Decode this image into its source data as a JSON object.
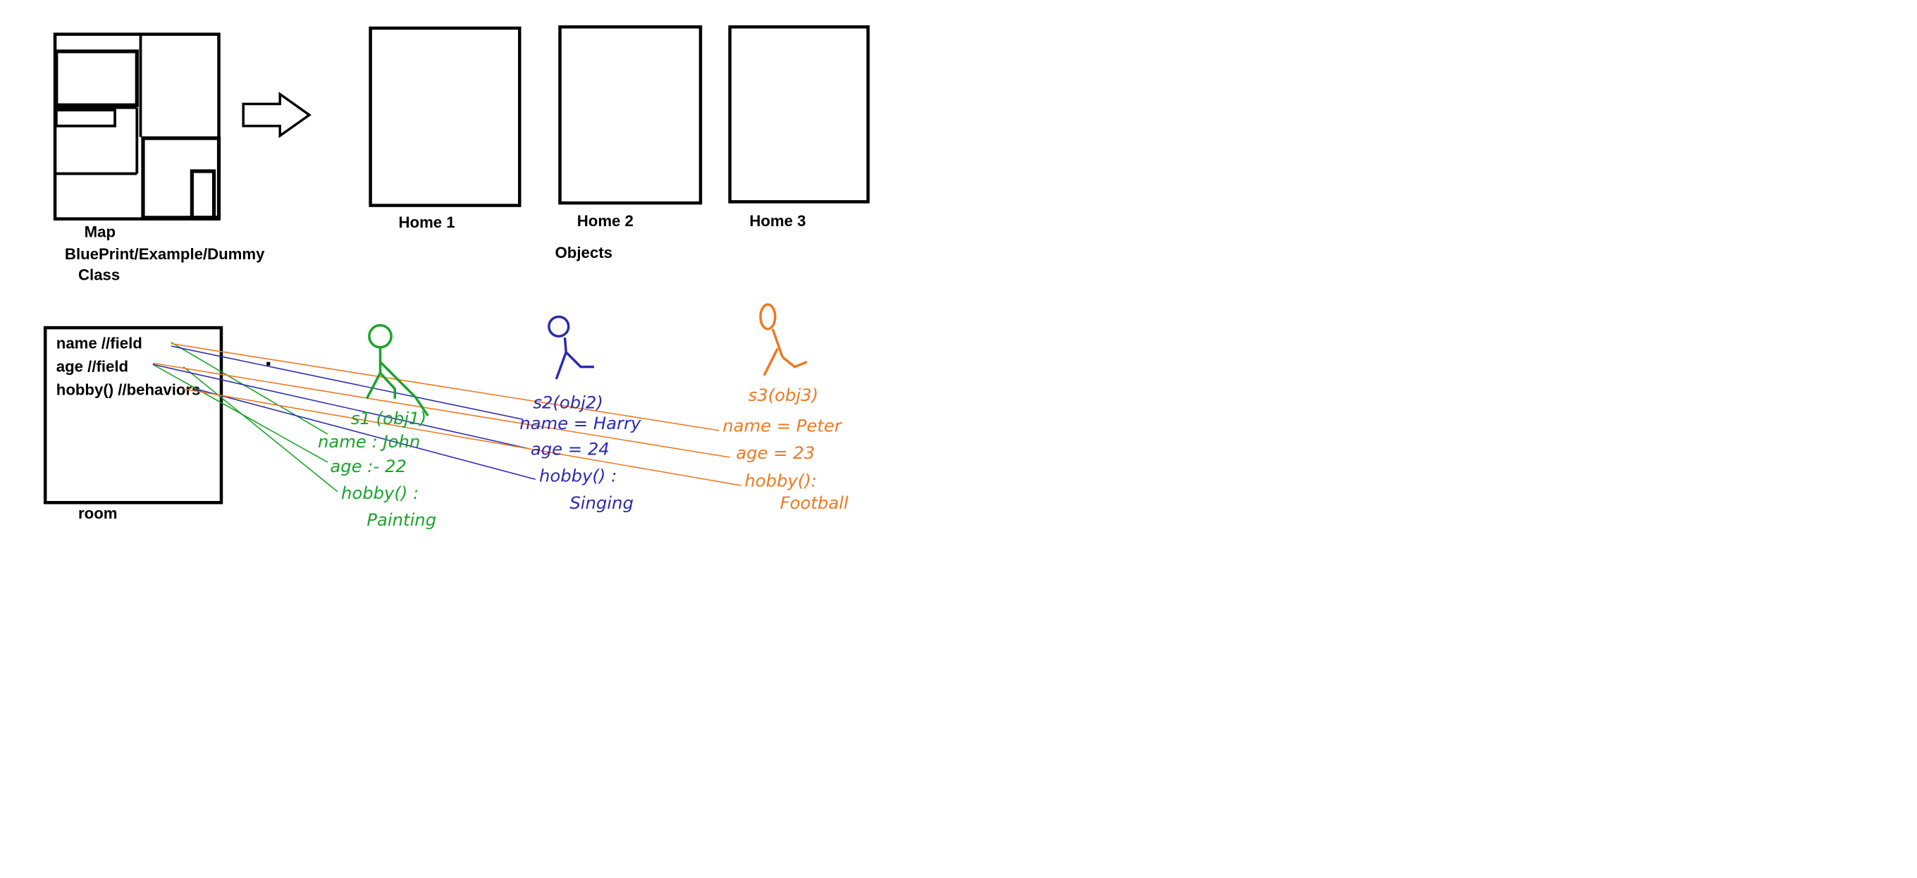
{
  "top": {
    "map_label": "Map",
    "blueprint_label": "BluePrint/Example/Dummy",
    "class_label": "Class",
    "homes": [
      "Home 1",
      "Home 2",
      "Home 3"
    ],
    "objects_label": "Objects"
  },
  "class_box": {
    "field_name": "name  //field",
    "field_age": "age  //field",
    "behavior_hobby": "hobby() //behaviors",
    "room_label": "room"
  },
  "objects": [
    {
      "color": "#1aa32a",
      "ref": "s1 (obj1)",
      "name": "name : John",
      "age": "age :- 22",
      "hobby": "hobby() :",
      "hobby_value": "Painting"
    },
    {
      "color": "#2a2ab0",
      "ref": "s2(obj2)",
      "name": "name = Harry",
      "age": "age = 24",
      "hobby": "hobby() :",
      "hobby_value": "Singing"
    },
    {
      "color": "#f07820",
      "ref": "s3(obj3)",
      "name": "name = Peter",
      "age": "age =  23",
      "hobby": "hobby():",
      "hobby_value": "Football"
    }
  ]
}
